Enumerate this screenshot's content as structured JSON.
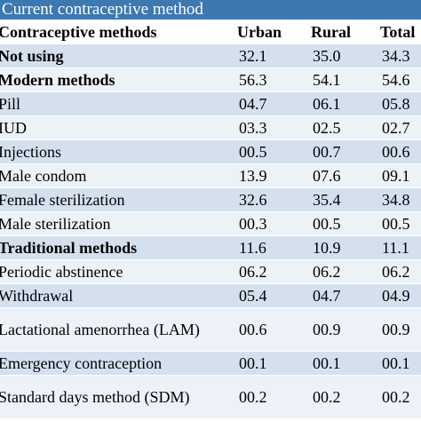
{
  "title": "Current contraceptive method",
  "headers": [
    "Contraceptive methods",
    "Urban",
    "Rural",
    "Total"
  ],
  "rows": [
    {
      "name": "Not using",
      "bold": true,
      "urban": "32.1",
      "rural": "35.0",
      "total": "34.3"
    },
    {
      "name": "Modern methods",
      "bold": true,
      "urban": "56.3",
      "rural": "54.1",
      "total": "54.6"
    },
    {
      "name": "Pill",
      "bold": false,
      "urban": "04.7",
      "rural": "06.1",
      "total": "05.8"
    },
    {
      "name": "IUD",
      "bold": false,
      "urban": "03.3",
      "rural": "02.5",
      "total": "02.7"
    },
    {
      "name": "Injections",
      "bold": false,
      "urban": "00.5",
      "rural": "00.7",
      "total": "00.6"
    },
    {
      "name": "Male condom",
      "bold": false,
      "urban": "13.9",
      "rural": "07.6",
      "total": "09.1"
    },
    {
      "name": "Female sterilization",
      "bold": false,
      "urban": "32.6",
      "rural": "35.4",
      "total": "34.8"
    },
    {
      "name": "Male sterilization",
      "bold": false,
      "urban": "00.3",
      "rural": "00.5",
      "total": "00.5"
    },
    {
      "name": "Traditional methods",
      "bold": true,
      "urban": "11.6",
      "rural": "10.9",
      "total": "11.1"
    },
    {
      "name": "Periodic abstinence",
      "bold": false,
      "urban": "06.2",
      "rural": "06.2",
      "total": "06.2"
    },
    {
      "name": "Withdrawal",
      "bold": false,
      "urban": "05.4",
      "rural": "04.7",
      "total": "04.9"
    },
    {
      "name": "Lactational amenorrhea (LAM)",
      "bold": false,
      "urban": "00.6",
      "rural": "00.9",
      "total": "00.9"
    },
    {
      "name": "Emergency contraception",
      "bold": false,
      "urban": "00.1",
      "rural": "00.1",
      "total": "00.1"
    },
    {
      "name": "Standard days method (SDM)",
      "bold": false,
      "urban": "00.2",
      "rural": "00.2",
      "total": "00.2"
    }
  ],
  "colors": {
    "title_bar": "#3d78b1",
    "row_odd": "#d5e0ef",
    "row_even": "#edf2f9"
  }
}
